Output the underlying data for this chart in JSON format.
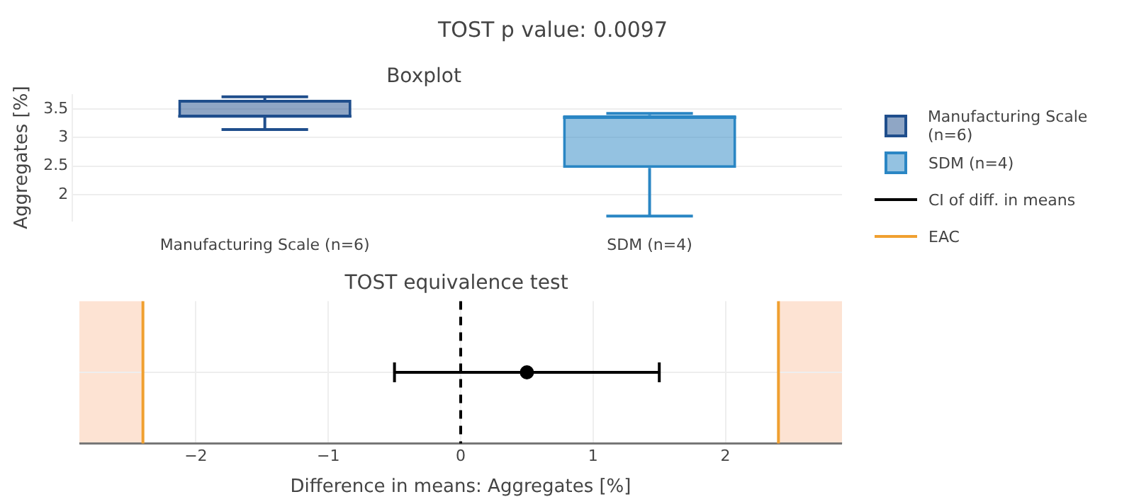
{
  "chart_data": [
    {
      "type": "box",
      "title": "Boxplot",
      "annotations": [
        "TOST p value: 0.0097"
      ],
      "ylabel": "Aggregates [%]",
      "categories": [
        "Manufacturing Scale (n=6)",
        "SDM (n=4)"
      ],
      "series": [
        {
          "name": "Manufacturing Scale (n=6)",
          "color": "#1f4e8c",
          "boxes": [
            {
              "low": 3.14,
              "q1": 3.35,
              "median": 3.37,
              "q3": 3.66,
              "high": 3.71
            },
            null
          ]
        },
        {
          "name": "SDM (n=4)",
          "color": "#2a86c4",
          "boxes": [
            null,
            {
              "low": 1.63,
              "q1": 2.47,
              "median": 3.35,
              "q3": 3.39,
              "high": 3.42
            }
          ]
        }
      ],
      "ylim": [
        1.55,
        3.75
      ],
      "yticks": [
        2,
        2.5,
        3,
        3.5
      ],
      "grid": "y",
      "legend": "right"
    },
    {
      "type": "scatter",
      "orientation": "horizontal",
      "title": "TOST equivalence test",
      "xlabel": "Difference in means: Aggregates [%]",
      "categories": [
        null
      ],
      "series": [
        {
          "name": "CI of diff. in means",
          "color": "#000000",
          "values": [
            0.5
          ],
          "errors": [
            [
              -0.5,
              1.5
            ]
          ]
        }
      ],
      "xlim": [
        -2.88,
        2.88
      ],
      "xticks": [
        {
          "value": -2,
          "label": "−2"
        },
        {
          "value": -1,
          "label": "−1"
        },
        0,
        1,
        2
      ],
      "grid": true,
      "legend": "right",
      "marker": "circle",
      "bands": [
        {
          "axis": "x",
          "from": -2.88,
          "to": -2.4,
          "color": "#fde3d3"
        },
        {
          "axis": "x",
          "from": 2.4,
          "to": 2.88,
          "color": "#fde3d3"
        }
      ],
      "ref_lines": [
        {
          "axis": "x",
          "value": 0,
          "color": "#000000",
          "line_style": "dashed"
        },
        {
          "axis": "x",
          "value": -2.4,
          "label": "EAC",
          "color": "#f0a030"
        },
        {
          "axis": "x",
          "value": 2.4,
          "color": "#f0a030"
        }
      ]
    }
  ]
}
